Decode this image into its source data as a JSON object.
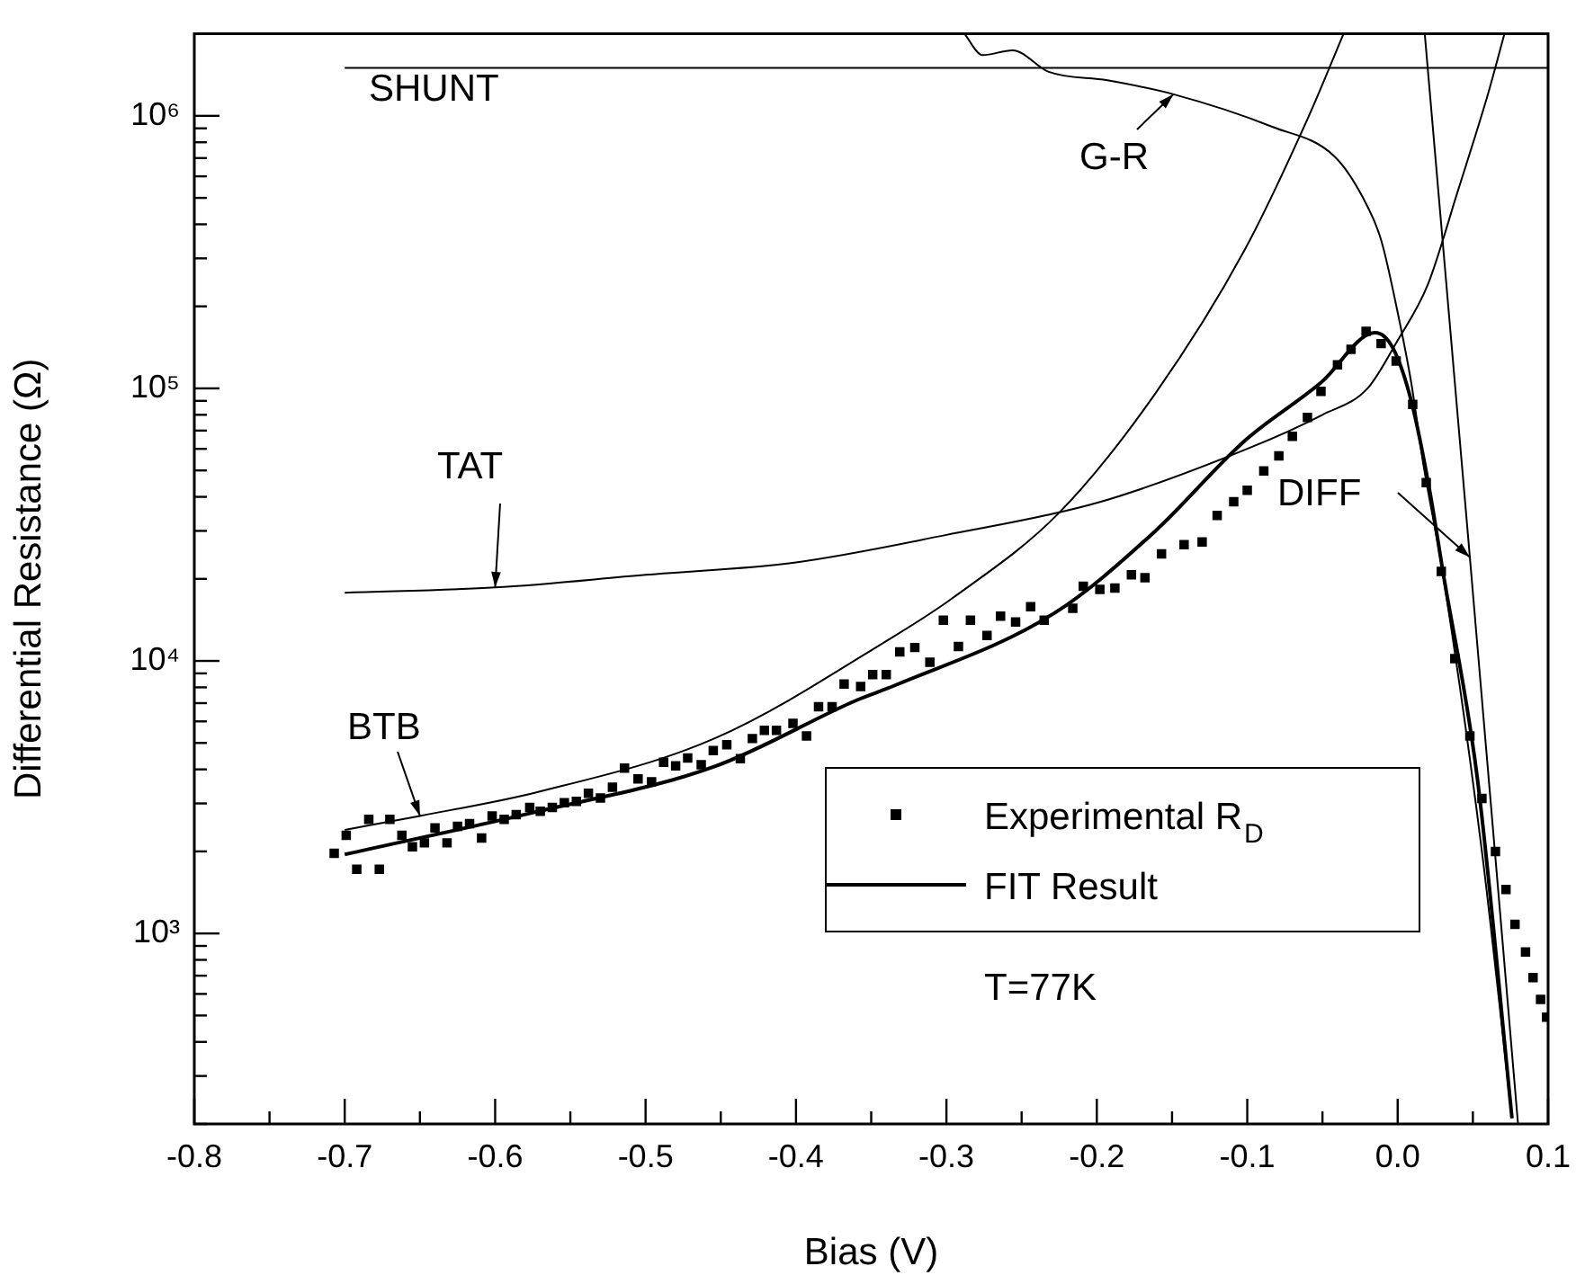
{
  "chart_data": {
    "type": "line",
    "xlabel": "Bias (V)",
    "ylabel": "Differential Resistance (Ω)",
    "log": "y",
    "grid": false,
    "legend": "bottom",
    "xlim": [
      -0.8,
      0.1
    ],
    "xticks": [
      -0.8,
      {
        "value": -0.75,
        "label": null
      },
      -0.7,
      {
        "value": -0.65,
        "label": null
      },
      -0.6,
      {
        "value": -0.55,
        "label": null
      },
      -0.5,
      {
        "value": -0.45,
        "label": null
      },
      -0.4,
      {
        "value": -0.35,
        "label": null
      },
      -0.3,
      {
        "value": -0.25,
        "label": null
      },
      -0.2,
      {
        "value": -0.15,
        "label": null
      },
      -0.1,
      {
        "value": -0.05,
        "label": null
      },
      {
        "value": 0,
        "label": "0.0"
      },
      {
        "value": 0.05,
        "label": null
      },
      0.1
    ],
    "ylim": [
      200,
      2000000
    ],
    "yticks": [
      {
        "value": 200,
        "label": null
      },
      {
        "value": 300,
        "label": null
      },
      {
        "value": 400,
        "label": null
      },
      {
        "value": 500,
        "label": null
      },
      {
        "value": 600,
        "label": null
      },
      {
        "value": 700,
        "label": null
      },
      {
        "value": 800,
        "label": null
      },
      {
        "value": 900,
        "label": null
      },
      {
        "value": 1000,
        "label": "10³"
      },
      {
        "value": 2000,
        "label": null
      },
      {
        "value": 3000,
        "label": null
      },
      {
        "value": 4000,
        "label": null
      },
      {
        "value": 5000,
        "label": null
      },
      {
        "value": 6000,
        "label": null
      },
      {
        "value": 7000,
        "label": null
      },
      {
        "value": 8000,
        "label": null
      },
      {
        "value": 9000,
        "label": null
      },
      {
        "value": 10000,
        "label": "10⁴"
      },
      {
        "value": 20000,
        "label": null
      },
      {
        "value": 30000,
        "label": null
      },
      {
        "value": 40000,
        "label": null
      },
      {
        "value": 50000,
        "label": null
      },
      {
        "value": 60000,
        "label": null
      },
      {
        "value": 70000,
        "label": null
      },
      {
        "value": 80000,
        "label": null
      },
      {
        "value": 90000,
        "label": null
      },
      {
        "value": 100000,
        "label": "10⁵"
      },
      {
        "value": 200000,
        "label": null
      },
      {
        "value": 300000,
        "label": null
      },
      {
        "value": 400000,
        "label": null
      },
      {
        "value": 500000,
        "label": null
      },
      {
        "value": 600000,
        "label": null
      },
      {
        "value": 700000,
        "label": null
      },
      {
        "value": 800000,
        "label": null
      },
      {
        "value": 900000,
        "label": null
      },
      {
        "value": 1000000,
        "label": "10⁶"
      },
      {
        "value": 2000000,
        "label": null
      }
    ],
    "annotations": [
      "T=77K"
    ],
    "series": [
      {
        "name": "Experimental R$_{D}$",
        "type": "scatter",
        "marker": "square",
        "color": "#000000",
        "x": [
          -0.707,
          -0.699,
          -0.692,
          -0.684,
          -0.677,
          -0.67,
          -0.662,
          -0.655,
          -0.647,
          -0.64,
          -0.632,
          -0.625,
          -0.617,
          -0.609,
          -0.602,
          -0.594,
          -0.586,
          -0.577,
          -0.57,
          -0.562,
          -0.554,
          -0.546,
          -0.538,
          -0.53,
          -0.522,
          -0.514,
          -0.505,
          -0.496,
          -0.488,
          -0.48,
          -0.472,
          -0.463,
          -0.455,
          -0.446,
          -0.437,
          -0.429,
          -0.421,
          -0.413,
          -0.402,
          -0.393,
          -0.385,
          -0.376,
          -0.368,
          -0.357,
          -0.349,
          -0.34,
          -0.331,
          -0.321,
          -0.311,
          -0.302,
          -0.292,
          -0.284,
          -0.273,
          -0.264,
          -0.254,
          -0.244,
          -0.235,
          -0.216,
          -0.209,
          -0.198,
          -0.188,
          -0.177,
          -0.168,
          -0.157,
          -0.142,
          -0.13,
          -0.12,
          -0.109,
          -0.1,
          -0.089,
          -0.079,
          -0.07,
          -0.06,
          -0.051,
          -0.04,
          -0.031,
          -0.021,
          -0.011,
          -0.001,
          0.01,
          0.019,
          0.029,
          0.038,
          0.048,
          0.056,
          0.065,
          0.072,
          0.078,
          0.085,
          0.09,
          0.095,
          0.099
        ],
        "values": [
          1970,
          2290,
          1720,
          2620,
          1720,
          2620,
          2290,
          2080,
          2150,
          2440,
          2150,
          2470,
          2530,
          2240,
          2700,
          2620,
          2730,
          2900,
          2810,
          2900,
          3020,
          3050,
          3270,
          3140,
          3440,
          4040,
          3690,
          3600,
          4250,
          4120,
          4400,
          4160,
          4690,
          4930,
          4380,
          5190,
          5560,
          5560,
          5900,
          5300,
          6790,
          6790,
          8220,
          8050,
          8910,
          8910,
          10800,
          11200,
          9890,
          14100,
          11300,
          14100,
          12400,
          14600,
          13900,
          15800,
          14100,
          15600,
          18800,
          18300,
          18500,
          20700,
          20200,
          24700,
          26700,
          27300,
          34200,
          38400,
          42300,
          49800,
          56500,
          66700,
          78200,
          97500,
          122000,
          139000,
          162000,
          146000,
          126000,
          87300,
          45100,
          21300,
          10200,
          5300,
          3130,
          2000,
          1450,
          1080,
          855,
          689,
          573,
          493
        ]
      },
      {
        "name": "FIT Result",
        "type": "line",
        "color": "#000000",
        "x": [
          -0.7,
          -0.572,
          -0.454,
          -0.359,
          -0.335,
          -0.228,
          -0.161,
          -0.102,
          -0.051,
          -0.015,
          -0.003,
          0.009,
          0.021,
          0.03,
          0.053,
          0.076
        ],
        "values": [
          1950,
          2800,
          4100,
          7200,
          8100,
          15000,
          30000,
          64000,
          105000,
          160000,
          140000,
          90000,
          43000,
          21400,
          3700,
          210
        ]
      },
      {
        "name": "SHUNT",
        "type": "line",
        "color": "#000000",
        "x": [
          -0.7,
          0.1
        ],
        "values": [
          1500000,
          1500000
        ]
      },
      {
        "name": "G-R",
        "type": "line",
        "color": "#000000",
        "x": [
          -0.288,
          -0.276,
          -0.256,
          -0.232,
          -0.193,
          -0.149,
          -0.083,
          -0.042,
          -0.023,
          -0.011,
          0.0,
          0.009,
          0.017,
          0.03,
          0.056,
          0.076
        ],
        "values": [
          2000000,
          1670000,
          1740000,
          1450000,
          1350000,
          1200000,
          910000,
          710000,
          500000,
          350000,
          190000,
          105000,
          53000,
          21000,
          2000,
          210
        ]
      },
      {
        "name": "TAT",
        "type": "line",
        "color": "#000000",
        "x": [
          -0.7,
          -0.6,
          -0.5,
          -0.4,
          -0.3,
          -0.2,
          -0.1,
          -0.05,
          -0.02,
          0.0,
          0.02,
          0.04,
          0.06,
          0.071
        ],
        "values": [
          17800,
          18600,
          20700,
          23000,
          29000,
          38000,
          60000,
          80000,
          100000,
          150000,
          240000,
          530000,
          1200000,
          2000000
        ]
      },
      {
        "name": "BTB",
        "type": "line",
        "color": "#000000",
        "x": [
          -0.7,
          -0.65,
          -0.572,
          -0.454,
          -0.335,
          -0.296,
          -0.225,
          -0.161,
          -0.102,
          -0.059,
          -0.036
        ],
        "values": [
          2400,
          2700,
          3300,
          5200,
          12300,
          17000,
          35000,
          96000,
          320000,
          1000000,
          2000000
        ]
      },
      {
        "name": "DIFF",
        "type": "line",
        "color": "#000000",
        "x": [
          0.018,
          0.048,
          0.08
        ],
        "values": [
          2000000,
          24000,
          200
        ]
      }
    ]
  }
}
